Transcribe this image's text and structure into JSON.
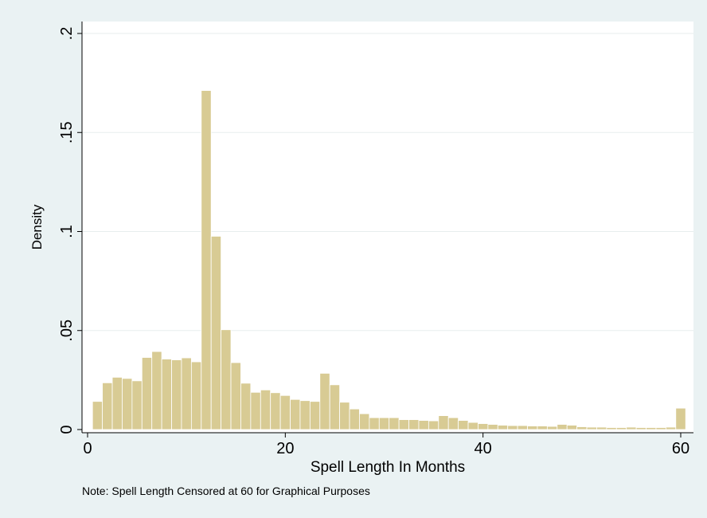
{
  "chart_data": {
    "type": "bar",
    "xlabel": "Spell Length In Months",
    "ylabel": "Density",
    "note": "Note: Spell Length Censored at 60 for Graphical Purposes",
    "xlim": [
      0,
      60
    ],
    "ylim": [
      0,
      0.2
    ],
    "x_ticks": [
      {
        "value": 0,
        "label": "0"
      },
      {
        "value": 20,
        "label": "20"
      },
      {
        "value": 40,
        "label": "40"
      },
      {
        "value": 60,
        "label": "60"
      }
    ],
    "y_ticks": [
      {
        "value": 0,
        "label": "0"
      },
      {
        "value": 0.05,
        "label": ".05"
      },
      {
        "value": 0.1,
        "label": ".1"
      },
      {
        "value": 0.15,
        "label": ".15"
      },
      {
        "value": 0.2,
        "label": ".2"
      }
    ],
    "grid": true,
    "bin_width": 1,
    "bin_starts": [
      0.5,
      1.5,
      2.5,
      3.5,
      4.5,
      5.5,
      6.5,
      7.5,
      8.5,
      9.5,
      10.5,
      11.5,
      12.5,
      13.5,
      14.5,
      15.5,
      16.5,
      17.5,
      18.5,
      19.5,
      20.5,
      21.5,
      22.5,
      23.5,
      24.5,
      25.5,
      26.5,
      27.5,
      28.5,
      29.5,
      30.5,
      31.5,
      32.5,
      33.5,
      34.5,
      35.5,
      36.5,
      37.5,
      38.5,
      39.5,
      40.5,
      41.5,
      42.5,
      43.5,
      44.5,
      45.5,
      46.5,
      47.5,
      48.5,
      49.5,
      50.5,
      51.5,
      52.5,
      53.5,
      54.5,
      55.5,
      56.5,
      57.5,
      58.5,
      59.5
    ],
    "values": [
      0.0142,
      0.0236,
      0.0264,
      0.0258,
      0.0246,
      0.0364,
      0.0394,
      0.0356,
      0.0352,
      0.0362,
      0.0342,
      0.1712,
      0.0976,
      0.0504,
      0.0338,
      0.0234,
      0.0188,
      0.02,
      0.0186,
      0.0172,
      0.0152,
      0.0146,
      0.0142,
      0.0284,
      0.0226,
      0.0138,
      0.0104,
      0.008,
      0.006,
      0.006,
      0.006,
      0.005,
      0.005,
      0.0046,
      0.0044,
      0.007,
      0.006,
      0.0046,
      0.0036,
      0.003,
      0.0026,
      0.0022,
      0.002,
      0.002,
      0.0018,
      0.0018,
      0.0016,
      0.0026,
      0.0022,
      0.0014,
      0.0012,
      0.0012,
      0.001,
      0.001,
      0.0012,
      0.001,
      0.001,
      0.001,
      0.0012,
      0.0108
    ],
    "colors": {
      "background": "#eaf2f3",
      "plot_area": "#ffffff",
      "bar_fill": "#d8cb94",
      "bar_stroke": "#ffffff",
      "grid": "#e7eded",
      "axis": "#000000",
      "text": "#000000"
    }
  }
}
